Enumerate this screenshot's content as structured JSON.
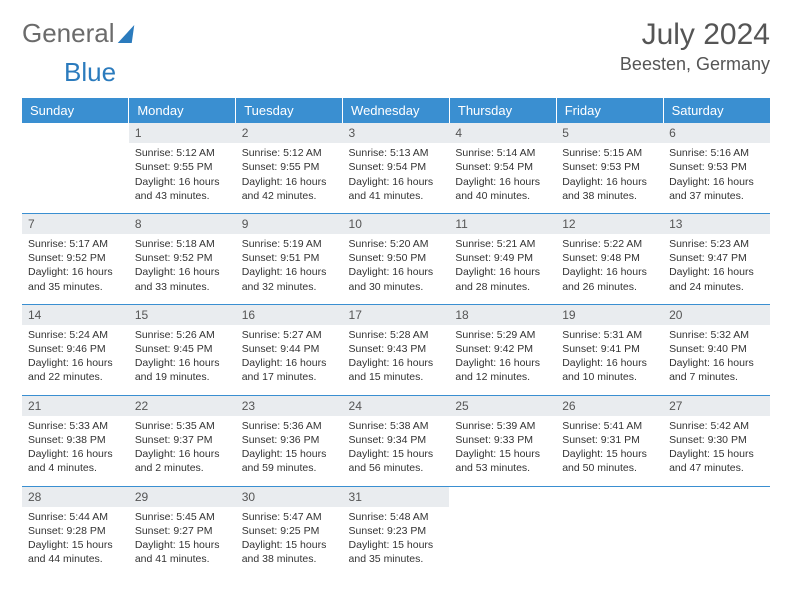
{
  "brand": {
    "word1": "General",
    "word2": "Blue"
  },
  "header": {
    "month_title": "July 2024",
    "location": "Beesten, Germany"
  },
  "colors": {
    "header_bg": "#3a8fd1",
    "header_text": "#ffffff",
    "daybar_bg": "#e9ecef",
    "rule": "#3a8fd1",
    "brand_gray": "#6b6b6b",
    "brand_blue": "#2b7bbd"
  },
  "day_headers": [
    "Sunday",
    "Monday",
    "Tuesday",
    "Wednesday",
    "Thursday",
    "Friday",
    "Saturday"
  ],
  "weeks": [
    [
      null,
      {
        "n": "1",
        "sr": "Sunrise: 5:12 AM",
        "ss": "Sunset: 9:55 PM",
        "dl": "Daylight: 16 hours and 43 minutes."
      },
      {
        "n": "2",
        "sr": "Sunrise: 5:12 AM",
        "ss": "Sunset: 9:55 PM",
        "dl": "Daylight: 16 hours and 42 minutes."
      },
      {
        "n": "3",
        "sr": "Sunrise: 5:13 AM",
        "ss": "Sunset: 9:54 PM",
        "dl": "Daylight: 16 hours and 41 minutes."
      },
      {
        "n": "4",
        "sr": "Sunrise: 5:14 AM",
        "ss": "Sunset: 9:54 PM",
        "dl": "Daylight: 16 hours and 40 minutes."
      },
      {
        "n": "5",
        "sr": "Sunrise: 5:15 AM",
        "ss": "Sunset: 9:53 PM",
        "dl": "Daylight: 16 hours and 38 minutes."
      },
      {
        "n": "6",
        "sr": "Sunrise: 5:16 AM",
        "ss": "Sunset: 9:53 PM",
        "dl": "Daylight: 16 hours and 37 minutes."
      }
    ],
    [
      {
        "n": "7",
        "sr": "Sunrise: 5:17 AM",
        "ss": "Sunset: 9:52 PM",
        "dl": "Daylight: 16 hours and 35 minutes."
      },
      {
        "n": "8",
        "sr": "Sunrise: 5:18 AM",
        "ss": "Sunset: 9:52 PM",
        "dl": "Daylight: 16 hours and 33 minutes."
      },
      {
        "n": "9",
        "sr": "Sunrise: 5:19 AM",
        "ss": "Sunset: 9:51 PM",
        "dl": "Daylight: 16 hours and 32 minutes."
      },
      {
        "n": "10",
        "sr": "Sunrise: 5:20 AM",
        "ss": "Sunset: 9:50 PM",
        "dl": "Daylight: 16 hours and 30 minutes."
      },
      {
        "n": "11",
        "sr": "Sunrise: 5:21 AM",
        "ss": "Sunset: 9:49 PM",
        "dl": "Daylight: 16 hours and 28 minutes."
      },
      {
        "n": "12",
        "sr": "Sunrise: 5:22 AM",
        "ss": "Sunset: 9:48 PM",
        "dl": "Daylight: 16 hours and 26 minutes."
      },
      {
        "n": "13",
        "sr": "Sunrise: 5:23 AM",
        "ss": "Sunset: 9:47 PM",
        "dl": "Daylight: 16 hours and 24 minutes."
      }
    ],
    [
      {
        "n": "14",
        "sr": "Sunrise: 5:24 AM",
        "ss": "Sunset: 9:46 PM",
        "dl": "Daylight: 16 hours and 22 minutes."
      },
      {
        "n": "15",
        "sr": "Sunrise: 5:26 AM",
        "ss": "Sunset: 9:45 PM",
        "dl": "Daylight: 16 hours and 19 minutes."
      },
      {
        "n": "16",
        "sr": "Sunrise: 5:27 AM",
        "ss": "Sunset: 9:44 PM",
        "dl": "Daylight: 16 hours and 17 minutes."
      },
      {
        "n": "17",
        "sr": "Sunrise: 5:28 AM",
        "ss": "Sunset: 9:43 PM",
        "dl": "Daylight: 16 hours and 15 minutes."
      },
      {
        "n": "18",
        "sr": "Sunrise: 5:29 AM",
        "ss": "Sunset: 9:42 PM",
        "dl": "Daylight: 16 hours and 12 minutes."
      },
      {
        "n": "19",
        "sr": "Sunrise: 5:31 AM",
        "ss": "Sunset: 9:41 PM",
        "dl": "Daylight: 16 hours and 10 minutes."
      },
      {
        "n": "20",
        "sr": "Sunrise: 5:32 AM",
        "ss": "Sunset: 9:40 PM",
        "dl": "Daylight: 16 hours and 7 minutes."
      }
    ],
    [
      {
        "n": "21",
        "sr": "Sunrise: 5:33 AM",
        "ss": "Sunset: 9:38 PM",
        "dl": "Daylight: 16 hours and 4 minutes."
      },
      {
        "n": "22",
        "sr": "Sunrise: 5:35 AM",
        "ss": "Sunset: 9:37 PM",
        "dl": "Daylight: 16 hours and 2 minutes."
      },
      {
        "n": "23",
        "sr": "Sunrise: 5:36 AM",
        "ss": "Sunset: 9:36 PM",
        "dl": "Daylight: 15 hours and 59 minutes."
      },
      {
        "n": "24",
        "sr": "Sunrise: 5:38 AM",
        "ss": "Sunset: 9:34 PM",
        "dl": "Daylight: 15 hours and 56 minutes."
      },
      {
        "n": "25",
        "sr": "Sunrise: 5:39 AM",
        "ss": "Sunset: 9:33 PM",
        "dl": "Daylight: 15 hours and 53 minutes."
      },
      {
        "n": "26",
        "sr": "Sunrise: 5:41 AM",
        "ss": "Sunset: 9:31 PM",
        "dl": "Daylight: 15 hours and 50 minutes."
      },
      {
        "n": "27",
        "sr": "Sunrise: 5:42 AM",
        "ss": "Sunset: 9:30 PM",
        "dl": "Daylight: 15 hours and 47 minutes."
      }
    ],
    [
      {
        "n": "28",
        "sr": "Sunrise: 5:44 AM",
        "ss": "Sunset: 9:28 PM",
        "dl": "Daylight: 15 hours and 44 minutes."
      },
      {
        "n": "29",
        "sr": "Sunrise: 5:45 AM",
        "ss": "Sunset: 9:27 PM",
        "dl": "Daylight: 15 hours and 41 minutes."
      },
      {
        "n": "30",
        "sr": "Sunrise: 5:47 AM",
        "ss": "Sunset: 9:25 PM",
        "dl": "Daylight: 15 hours and 38 minutes."
      },
      {
        "n": "31",
        "sr": "Sunrise: 5:48 AM",
        "ss": "Sunset: 9:23 PM",
        "dl": "Daylight: 15 hours and 35 minutes."
      },
      null,
      null,
      null
    ]
  ]
}
